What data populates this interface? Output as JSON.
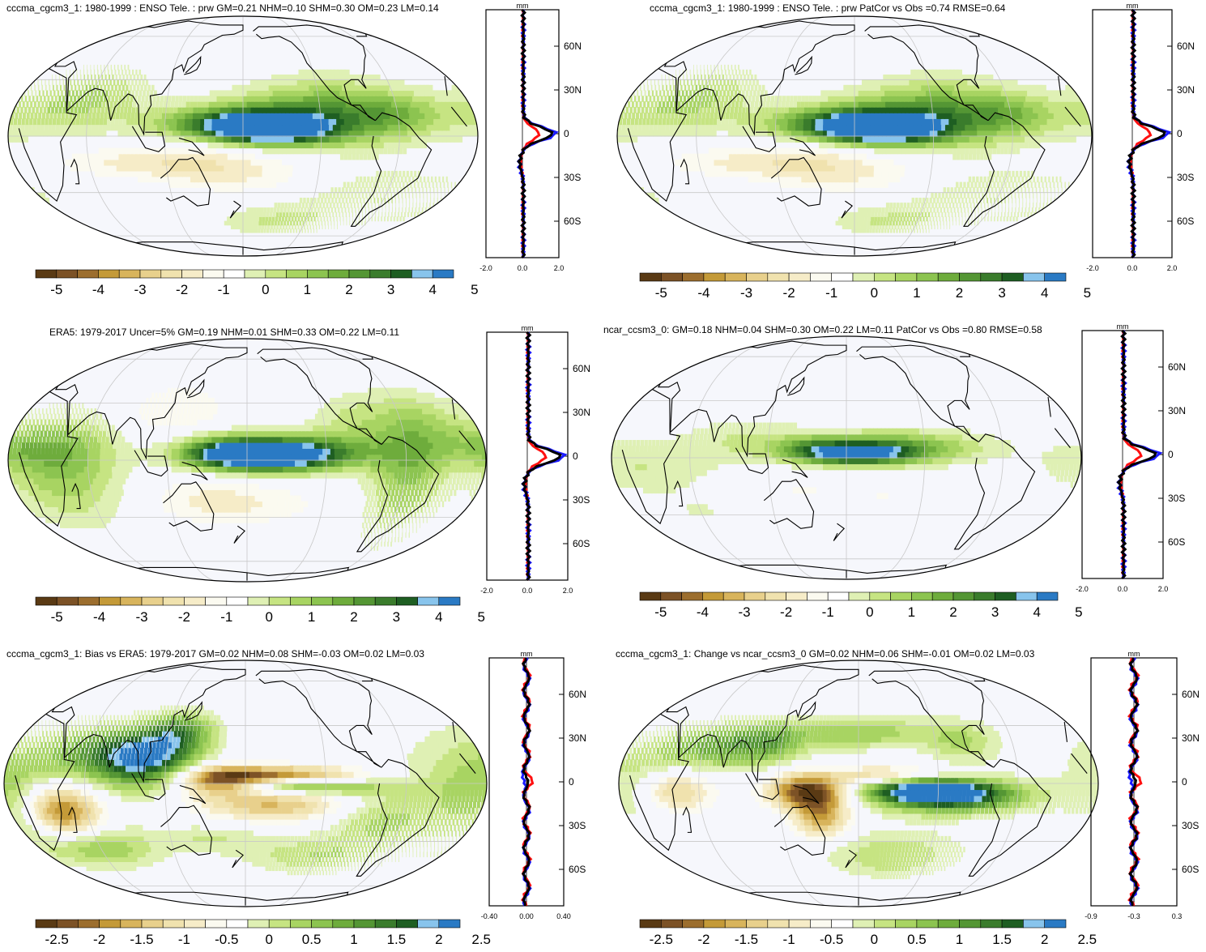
{
  "colors": {
    "colorbar": [
      "#5a3a14",
      "#7c5226",
      "#9c6e2e",
      "#c49a38",
      "#d8b45c",
      "#e8d08c",
      "#f0e2ae",
      "#f6ecc8",
      "#fbfaf0",
      "#ffffff",
      "#dff0b4",
      "#c6e482",
      "#a8d462",
      "#8cc450",
      "#6eac3c",
      "#549634",
      "#3a7c2c",
      "#1e5e22",
      "#88c4ec",
      "#2a7ac4"
    ],
    "ocean": "#f6f7fc",
    "land_outline": "#000000",
    "grid": "#c8c8c8",
    "profile_model": "#ff1010",
    "profile_ref": "#1a1aff",
    "profile_diff": "#000000"
  },
  "panels": [
    {
      "id": "model-a",
      "title": "cccma_cgcm3_1: 1980-1999 : ENSO Tele. : prw GM=0.21 NHM=0.10 SHM=0.30 OM=0.23 LM=0.14",
      "colorbar_labels": [
        "-5",
        "-4",
        "-3",
        "-2",
        "-1",
        "0",
        "1",
        "2",
        "3",
        "4",
        "5"
      ],
      "profile_unit": "mm",
      "profile_x_ticks": [
        "-2.0",
        "0.0",
        "2.0"
      ],
      "profile_lat_ticks": [
        "60N",
        "30N",
        "0",
        "30S",
        "60S"
      ]
    },
    {
      "id": "model-a-patcor",
      "title": "cccma_cgcm3_1: 1980-1999 : ENSO Tele. : prw PatCor vs Obs =0.74 RMSE=0.64",
      "colorbar_labels": [
        "-5",
        "-4",
        "-3",
        "-2",
        "-1",
        "0",
        "1",
        "2",
        "3",
        "4",
        "5"
      ],
      "profile_unit": "mm",
      "profile_x_ticks": [
        "-2.0",
        "0.0",
        "2.0"
      ],
      "profile_lat_ticks": [
        "60N",
        "30N",
        "0",
        "30S",
        "60S"
      ]
    },
    {
      "id": "obs",
      "title": "ERA5: 1979-2017 Uncer=5% GM=0.19 NHM=0.01 SHM=0.33 OM=0.22 LM=0.11",
      "colorbar_labels": [
        "-5",
        "-4",
        "-3",
        "-2",
        "-1",
        "0",
        "1",
        "2",
        "3",
        "4",
        "5"
      ],
      "profile_unit": "mm",
      "profile_x_ticks": [
        "-2.0",
        "0.0",
        "2.0"
      ],
      "profile_lat_ticks": [
        "60N",
        "30N",
        "0",
        "30S",
        "60S"
      ]
    },
    {
      "id": "model-b",
      "title": "ncar_ccsm3_0: GM=0.18 NHM=0.04 SHM=0.30 OM=0.22 LM=0.11 PatCor vs Obs =0.80 RMSE=0.58",
      "colorbar_labels": [
        "-5",
        "-4",
        "-3",
        "-2",
        "-1",
        "0",
        "1",
        "2",
        "3",
        "4",
        "5"
      ],
      "profile_unit": "mm",
      "profile_x_ticks": [
        "-2.0",
        "0.0",
        "2.0"
      ],
      "profile_lat_ticks": [
        "60N",
        "30N",
        "0",
        "30S",
        "60S"
      ]
    },
    {
      "id": "bias",
      "title": "cccma_cgcm3_1: Bias vs ERA5: 1979-2017 GM=0.02 NHM=0.08 SHM=-0.03 OM=0.02 LM=0.03",
      "colorbar_labels": [
        "-2.5",
        "-2",
        "-1.5",
        "-1",
        "-0.5",
        "0",
        "0.5",
        "1",
        "1.5",
        "2",
        "2.5"
      ],
      "profile_unit": "mm",
      "profile_x_ticks": [
        "-0.40",
        "0.00",
        "0.40"
      ],
      "profile_lat_ticks": [
        "60N",
        "30N",
        "0",
        "30S",
        "60S"
      ]
    },
    {
      "id": "change",
      "title": "cccma_cgcm3_1: Change vs ncar_ccsm3_0 GM=0.02 NHM=0.06 SHM=-0.01 OM=0.02 LM=0.03",
      "colorbar_labels": [
        "-2.5",
        "-2",
        "-1.5",
        "-1",
        "-0.5",
        "0",
        "0.5",
        "1",
        "1.5",
        "2",
        "2.5"
      ],
      "profile_unit": "mm",
      "profile_x_ticks": [
        "-0.9",
        "-0.3",
        "0.3"
      ],
      "profile_lat_ticks": [
        "60N",
        "30N",
        "0",
        "30S",
        "60S"
      ]
    }
  ]
}
